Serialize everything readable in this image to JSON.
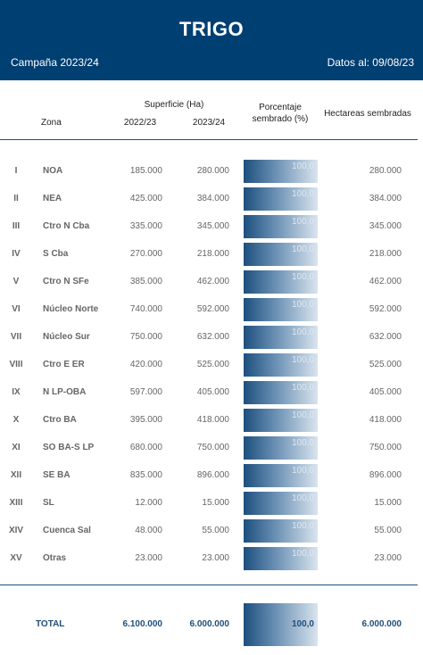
{
  "header": {
    "title": "TRIGO",
    "campaign": "Campaña 2023/24",
    "date": "Datos al: 09/08/23"
  },
  "columns": {
    "zona": "Zona",
    "superficie": "Superficie (Ha)",
    "year1": "2022/23",
    "year2": "2023/24",
    "porcentaje": "Porcentaje sembrado (%)",
    "hectareas": "Hectareas sembradas"
  },
  "rows": [
    {
      "roman": "I",
      "zone": "NOA",
      "v1": "185.000",
      "v2": "280.000",
      "pct": "100,0",
      "ha": "280.000"
    },
    {
      "roman": "II",
      "zone": "NEA",
      "v1": "425.000",
      "v2": "384.000",
      "pct": "100,0",
      "ha": "384.000"
    },
    {
      "roman": "III",
      "zone": "Ctro N Cba",
      "v1": "335.000",
      "v2": "345.000",
      "pct": "100,0",
      "ha": "345.000"
    },
    {
      "roman": "IV",
      "zone": "S Cba",
      "v1": "270.000",
      "v2": "218.000",
      "pct": "100,0",
      "ha": "218.000"
    },
    {
      "roman": "V",
      "zone": "Ctro N SFe",
      "v1": "385.000",
      "v2": "462.000",
      "pct": "100,0",
      "ha": "462.000"
    },
    {
      "roman": "VI",
      "zone": "Núcleo Norte",
      "v1": "740.000",
      "v2": "592.000",
      "pct": "100,0",
      "ha": "592.000"
    },
    {
      "roman": "VII",
      "zone": "Núcleo Sur",
      "v1": "750.000",
      "v2": "632.000",
      "pct": "100,0",
      "ha": "632.000"
    },
    {
      "roman": "VIII",
      "zone": "Ctro E ER",
      "v1": "420.000",
      "v2": "525.000",
      "pct": "100,0",
      "ha": "525.000"
    },
    {
      "roman": "IX",
      "zone": "N LP-OBA",
      "v1": "597.000",
      "v2": "405.000",
      "pct": "100,0",
      "ha": "405.000"
    },
    {
      "roman": "X",
      "zone": "Ctro BA",
      "v1": "395.000",
      "v2": "418.000",
      "pct": "100,0",
      "ha": "418.000"
    },
    {
      "roman": "XI",
      "zone": "SO BA-S LP",
      "v1": "680.000",
      "v2": "750.000",
      "pct": "100,0",
      "ha": "750.000"
    },
    {
      "roman": "XII",
      "zone": "SE BA",
      "v1": "835.000",
      "v2": "896.000",
      "pct": "100,0",
      "ha": "896.000"
    },
    {
      "roman": "XIII",
      "zone": "SL",
      "v1": "12.000",
      "v2": "15.000",
      "pct": "100,0",
      "ha": "15.000"
    },
    {
      "roman": "XIV",
      "zone": "Cuenca Sal",
      "v1": "48.000",
      "v2": "55.000",
      "pct": "100,0",
      "ha": "55.000"
    },
    {
      "roman": "XV",
      "zone": "Otras",
      "v1": "23.000",
      "v2": "23.000",
      "pct": "100,0",
      "ha": "23.000"
    }
  ],
  "total": {
    "label": "TOTAL",
    "v1": "6.100.000",
    "v2": "6.000.000",
    "pct": "100,0",
    "ha": "6.000.000"
  },
  "colors": {
    "header_bg": "#003f72",
    "bar_dark": "#1c4f7e",
    "bar_light": "#d9e4ee"
  }
}
